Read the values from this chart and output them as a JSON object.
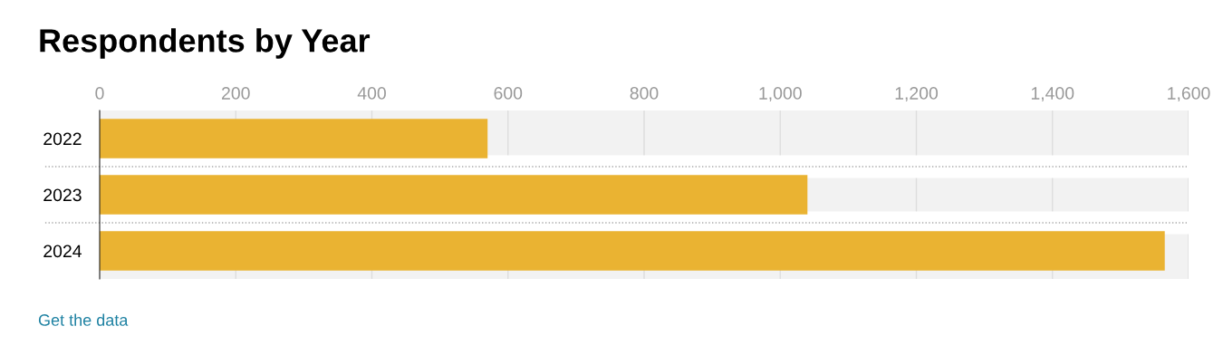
{
  "chart_data": {
    "type": "bar",
    "orientation": "horizontal",
    "title": "Respondents by Year",
    "categories": [
      "2022",
      "2023",
      "2024"
    ],
    "values": [
      570,
      1040,
      1565
    ],
    "color": "#eab332",
    "xlim": [
      0,
      1600
    ],
    "xticks": [
      0,
      200,
      400,
      {
        "value": 600,
        "label": "600"
      },
      {
        "value": 800,
        "label": "800"
      },
      {
        "value": 1000,
        "label": "1,000"
      },
      {
        "value": 1200,
        "label": "1,200"
      },
      {
        "value": 1400,
        "label": "1,400"
      },
      {
        "value": 1600,
        "label": "1,600"
      }
    ],
    "grid": "x",
    "legend": false,
    "annotations": [
      "Get the data"
    ]
  }
}
